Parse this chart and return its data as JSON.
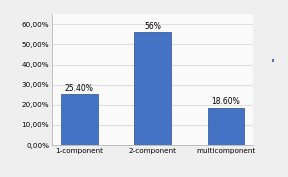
{
  "categories": [
    "1-component",
    "2-component",
    "multicomponent"
  ],
  "values": [
    25.4,
    56.0,
    18.6
  ],
  "labels": [
    "25.40%",
    "56%",
    "18.60%"
  ],
  "bar_color": "#4472C4",
  "bar_edge_color": "#2E4F8C",
  "legend_color": "#4472C4",
  "background_color": "#F0EFEF",
  "plot_bg_color": "#FAFAFA",
  "ylim": [
    0,
    65
  ],
  "yticks": [
    0,
    10,
    20,
    30,
    40,
    50,
    60
  ],
  "ytick_labels": [
    "0,00%",
    "10,00%",
    "20,00%",
    "30,00%",
    "40,00%",
    "50,00%",
    "60,00%"
  ],
  "bar_width": 0.5,
  "label_fontsize": 5.5,
  "tick_fontsize": 5.2,
  "grid_color": "#D8D8D8",
  "grid_linewidth": 0.6
}
